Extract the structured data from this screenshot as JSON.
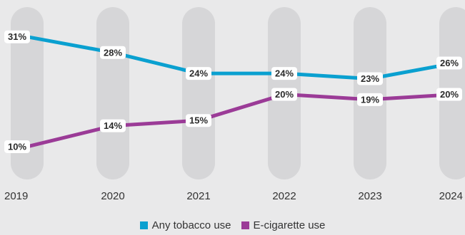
{
  "chart_data": {
    "type": "line",
    "x": [
      "2019",
      "2020",
      "2021",
      "2022",
      "2023",
      "2024"
    ],
    "series": [
      {
        "name": "Any tobacco use",
        "color": "#0aa0d0",
        "values": [
          31,
          28,
          24,
          24,
          23,
          26
        ],
        "labels": [
          "31%",
          "28%",
          "24%",
          "24%",
          "23%",
          "26%"
        ]
      },
      {
        "name": "E-cigarette use",
        "color": "#9b3b97",
        "values": [
          10,
          14,
          15,
          20,
          19,
          20
        ],
        "labels": [
          "10%",
          "14%",
          "15%",
          "20%",
          "19%",
          "20%"
        ]
      }
    ],
    "ylim": [
      4,
      36
    ],
    "legend_position": "bottom-center",
    "grid": false
  }
}
